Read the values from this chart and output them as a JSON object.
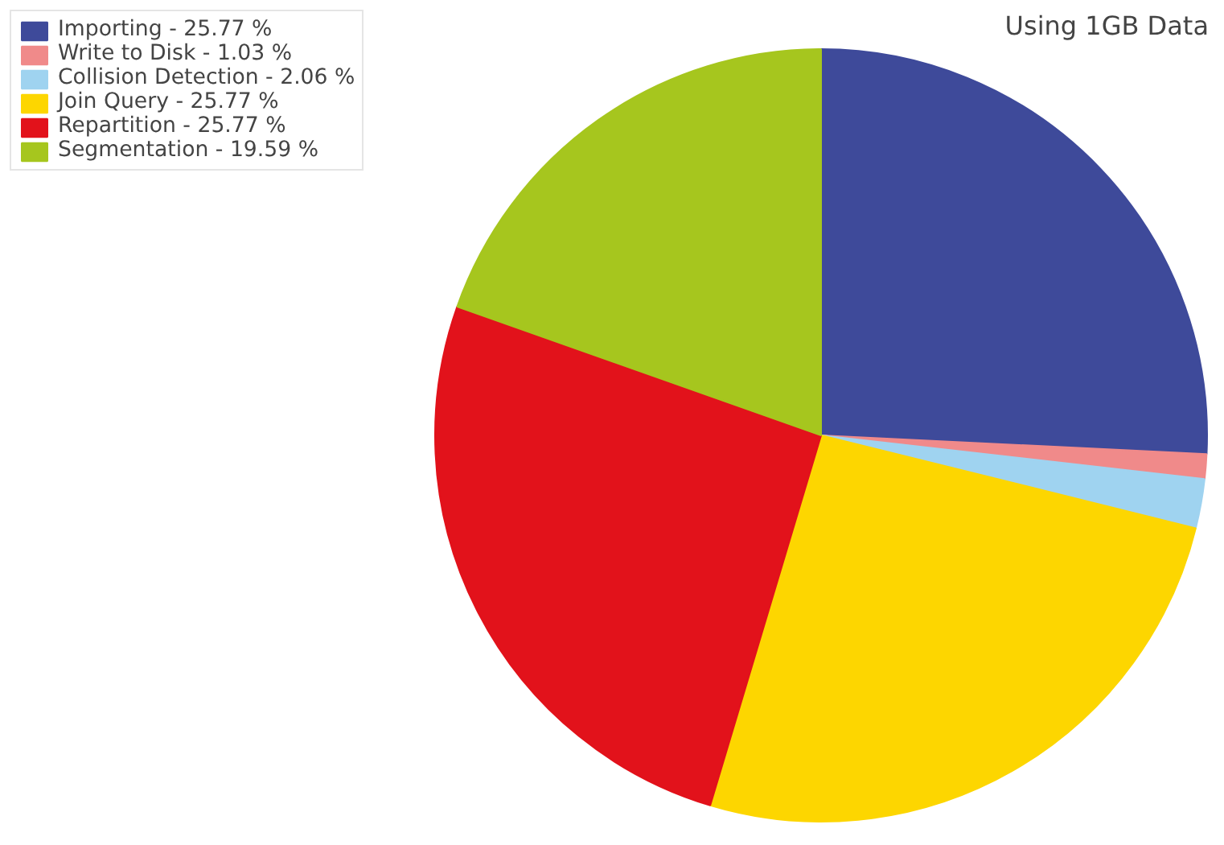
{
  "chart_data": {
    "type": "pie",
    "title": "Using 1GB Data",
    "categories": [
      "Importing - 25.77 %",
      "Write to Disk - 1.03 %",
      "Collision Detection - 2.06 %",
      "Join Query - 25.77 %",
      "Repartition - 25.77 %",
      "Segmentation - 19.59 %"
    ],
    "values": [
      25.77,
      1.03,
      2.06,
      25.77,
      25.77,
      19.59
    ],
    "colors": [
      "#3e4a9a",
      "#f08a8a",
      "#9fd3f0",
      "#fdd600",
      "#e2121b",
      "#a6c61e"
    ],
    "legend": "top left"
  }
}
